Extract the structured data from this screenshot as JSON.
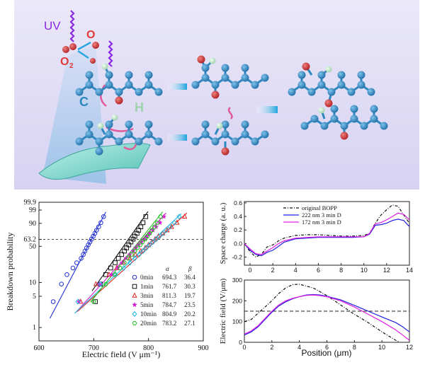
{
  "schematic": {
    "uv_label": "UV",
    "o_label": "O",
    "o2_label": "O",
    "o2_sub": "2",
    "c_label": "C",
    "h_label": "H"
  },
  "colors": {
    "uv_wave": "#8a2be2",
    "carbon": "#2f87c0",
    "oxygen": "#d13b3b",
    "hydrogen": "#bfe3c8",
    "arrow": "#2aa7dd",
    "film": "#7fd3c8"
  },
  "chart_data": [
    {
      "type": "scatter",
      "title": "",
      "xlabel": "Electric field (V μm⁻¹)",
      "ylabel": "Breakdown probability",
      "xlim": [
        600,
        900
      ],
      "x_ticks": [
        "600",
        "700",
        "800",
        "900"
      ],
      "y_ticks": [
        "1",
        "5",
        "10",
        "50",
        "63.2",
        "90",
        "99",
        "99.9"
      ],
      "reference_line": "63.2",
      "legend_header": {
        "alpha": "α",
        "beta": "β"
      },
      "series": [
        {
          "name": "0min",
          "alpha": "694.3",
          "beta": "36.4",
          "color": "#1f2fd0",
          "marker": "circle",
          "x": [
            626,
            641,
            651,
            662,
            669,
            677,
            681,
            684,
            687,
            690,
            693,
            696,
            699,
            702,
            705,
            709,
            713,
            718
          ]
        },
        {
          "name": "1min",
          "alpha": "761.7",
          "beta": "30.3",
          "color": "#111111",
          "marker": "square",
          "x": [
            703,
            712,
            722,
            731,
            739,
            745,
            751,
            756,
            760,
            764,
            768,
            772,
            775,
            779,
            782,
            786,
            790,
            795
          ]
        },
        {
          "name": "3min",
          "alpha": "811.3",
          "beta": "19.7",
          "color": "#e02020",
          "marker": "triangle",
          "x": [
            676,
            704,
            728,
            742,
            754,
            766,
            776,
            786,
            794,
            800,
            806,
            812,
            818,
            826,
            834,
            842,
            852,
            866
          ]
        },
        {
          "name": "5min",
          "alpha": "784.7",
          "beta": "23.5",
          "color": "#d41ad4",
          "marker": "star",
          "x": [
            673,
            710,
            733,
            744,
            752,
            759,
            766,
            772,
            777,
            782,
            787,
            792,
            797,
            802,
            808,
            814,
            821,
            828
          ]
        },
        {
          "name": "10min",
          "alpha": "804.9",
          "beta": "20.2",
          "color": "#22b8e0",
          "marker": "diamond",
          "x": [
            671,
            712,
            740,
            755,
            766,
            775,
            783,
            790,
            796,
            802,
            808,
            814,
            820,
            826,
            832,
            839,
            847,
            856
          ]
        },
        {
          "name": "20min",
          "alpha": "783.2",
          "beta": "27.1",
          "color": "#22c022",
          "marker": "hexagon",
          "x": [
            700,
            722,
            738,
            748,
            756,
            763,
            769,
            775,
            780,
            785,
            789,
            794,
            798,
            802,
            806,
            811,
            816,
            822
          ]
        }
      ]
    },
    {
      "type": "line",
      "title": "",
      "xlabel": "",
      "ylabel": "Space charge (a. u.)",
      "xlim": [
        -0.5,
        14
      ],
      "ylim": [
        -0.32,
        0.62
      ],
      "x_ticks": [
        "0",
        "2",
        "4",
        "6",
        "8",
        "10",
        "12",
        "14"
      ],
      "y_ticks": [
        "-0.2",
        "0.0",
        "0.2",
        "0.4",
        "0.6"
      ],
      "series": [
        {
          "name": "original BOPP",
          "color": "#111111",
          "style": "dashdot",
          "x": [
            -0.5,
            0,
            0.5,
            1,
            1.5,
            2,
            2.5,
            3,
            4,
            5,
            6,
            7,
            8,
            9,
            10,
            10.5,
            11,
            11.5,
            12,
            12.5,
            13,
            13.5,
            14
          ],
          "y": [
            0.0,
            -0.12,
            -0.2,
            -0.16,
            -0.05,
            -0.02,
            0.04,
            0.08,
            0.12,
            0.13,
            0.13,
            0.12,
            0.11,
            0.11,
            0.12,
            0.15,
            0.3,
            0.42,
            0.5,
            0.57,
            0.55,
            0.42,
            0.3
          ]
        },
        {
          "name": "222 nm 3 min D",
          "color": "#2020e0",
          "style": "solid",
          "x": [
            -0.5,
            0,
            0.5,
            1,
            1.5,
            2,
            2.5,
            3,
            4,
            5,
            6,
            7,
            8,
            9,
            10,
            10.5,
            11,
            11.5,
            12,
            12.5,
            13,
            13.5,
            14
          ],
          "y": [
            0.0,
            -0.1,
            -0.16,
            -0.18,
            -0.13,
            -0.1,
            -0.04,
            0.02,
            0.07,
            0.08,
            0.09,
            0.09,
            0.09,
            0.09,
            0.1,
            0.14,
            0.27,
            0.28,
            0.3,
            0.34,
            0.36,
            0.34,
            0.25
          ]
        },
        {
          "name": "172 nm 3 min D",
          "color": "#e020e0",
          "style": "solid",
          "x": [
            -0.5,
            0,
            0.5,
            1,
            1.5,
            2,
            2.5,
            3,
            4,
            5,
            6,
            7,
            8,
            9,
            10,
            10.5,
            11,
            11.5,
            12,
            12.5,
            13,
            13.5,
            14
          ],
          "y": [
            0.0,
            -0.08,
            -0.15,
            -0.16,
            -0.11,
            -0.06,
            0.0,
            0.04,
            0.08,
            0.09,
            0.1,
            0.1,
            0.1,
            0.1,
            0.1,
            0.15,
            0.29,
            0.31,
            0.35,
            0.4,
            0.45,
            0.43,
            0.35
          ]
        }
      ]
    },
    {
      "type": "line",
      "title": "",
      "xlabel": "Position (μm)",
      "ylabel": "Electric field (V/μm)",
      "xlim": [
        0,
        12
      ],
      "ylim": [
        0,
        300
      ],
      "x_ticks": [
        "0",
        "2",
        "4",
        "6",
        "8",
        "10",
        "12"
      ],
      "y_ticks": [
        "0",
        "100",
        "200",
        "300"
      ],
      "reference_line": 150,
      "series": [
        {
          "name": "original BOPP",
          "color": "#111111",
          "style": "dashdot",
          "x": [
            0,
            0.5,
            1,
            1.5,
            2,
            2.5,
            3,
            3.5,
            4,
            5,
            6,
            7,
            8,
            9,
            10,
            10.5,
            11,
            11.3
          ],
          "y": [
            100,
            110,
            140,
            170,
            200,
            235,
            262,
            278,
            280,
            262,
            225,
            180,
            135,
            95,
            50,
            30,
            10,
            0
          ]
        },
        {
          "name": "222 nm 3 min D",
          "color": "#2020e0",
          "style": "solid",
          "x": [
            0,
            0.5,
            1,
            1.5,
            2,
            2.5,
            3,
            3.5,
            4,
            4.5,
            5,
            5.5,
            6,
            7,
            8,
            9,
            10,
            11,
            11.5,
            12
          ],
          "y": [
            35,
            50,
            75,
            110,
            145,
            175,
            195,
            210,
            220,
            228,
            230,
            228,
            222,
            205,
            178,
            150,
            122,
            95,
            75,
            50
          ]
        },
        {
          "name": "172 nm 3 min D",
          "color": "#e020e0",
          "style": "solid",
          "x": [
            0,
            0.5,
            1,
            1.5,
            2,
            2.5,
            3,
            3.5,
            4,
            4.5,
            5,
            5.5,
            6,
            7,
            8,
            9,
            10,
            11,
            11.5,
            12
          ],
          "y": [
            40,
            55,
            80,
            115,
            150,
            180,
            200,
            212,
            220,
            226,
            228,
            225,
            220,
            200,
            170,
            135,
            100,
            60,
            35,
            10
          ]
        }
      ]
    }
  ]
}
